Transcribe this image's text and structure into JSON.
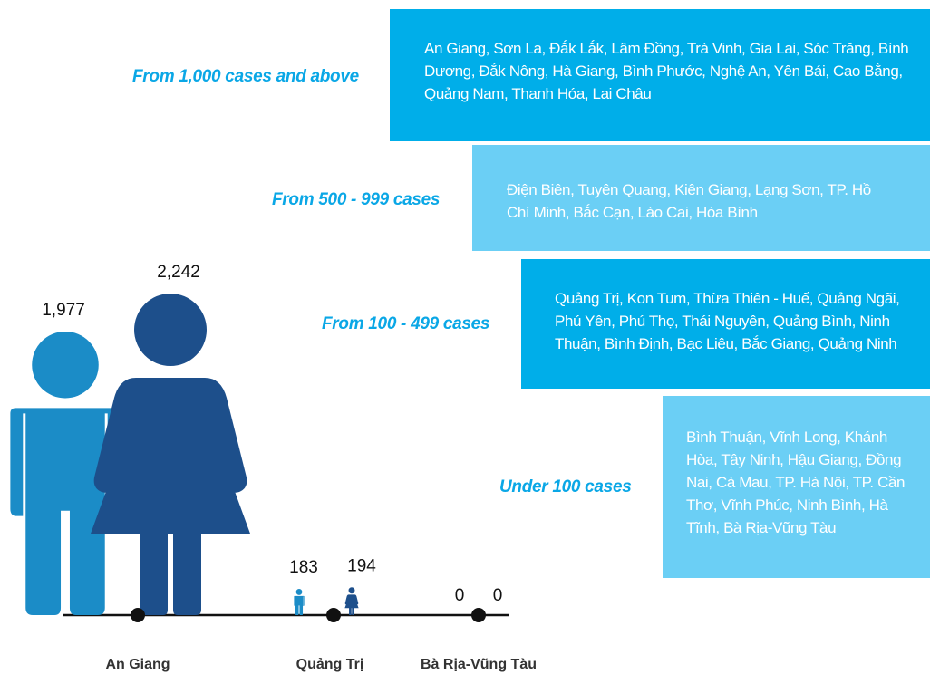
{
  "colors": {
    "box_dark": "#00aee9",
    "box_light": "#6bcff5",
    "label": "#0aa7e6",
    "male": "#1b8cc7",
    "female": "#1d4f8b",
    "axis": "#111111"
  },
  "tiers": [
    {
      "label": "From 1,000 cases and above",
      "provinces": "An Giang, Sơn La, Đắk Lắk, Lâm Đồng, Trà Vinh, Gia Lai, Sóc Trăng, Bình Dương, Đắk Nông, Hà Giang, Bình Phước, Nghệ An, Yên Bái, Cao Bằng, Quảng Nam, Thanh Hóa, Lai Châu"
    },
    {
      "label": "From 500 - 999 cases",
      "provinces": "Điện Biên, Tuyên Quang, Kiên Giang, Lạng Sơn, TP. Hồ Chí Minh, Bắc Cạn, Lào Cai, Hòa Bình"
    },
    {
      "label": "From 100 - 499 cases",
      "provinces": "Quảng Trị, Kon Tum, Thừa Thiên - Huế, Quảng Ngãi, Phú Yên, Phú Thọ, Thái Nguyên, Quảng Bình, Ninh Thuận, Bình Định, Bạc Liêu, Bắc Giang, Quảng Ninh"
    },
    {
      "label": "Under 100 cases",
      "provinces": "Bình Thuận, Vĩnh Long, Khánh Hòa, Tây Ninh, Hậu Giang, Đồng Nai, Cà Mau, TP. Hà Nội, TP. Cần Thơ, Vĩnh Phúc, Ninh Bình, Hà Tĩnh, Bà Rịa-Vũng Tàu"
    }
  ],
  "chart_data": {
    "type": "bar",
    "categories": [
      "An Giang",
      "Quảng Trị",
      "Bà Rịa-Vũng Tàu"
    ],
    "series": [
      {
        "values": [
          1977,
          183,
          0
        ]
      },
      {
        "values": [
          2242,
          194,
          0
        ]
      }
    ],
    "value_labels": [
      [
        "1,977",
        "183",
        "0"
      ],
      [
        "2,242",
        "194",
        "0"
      ]
    ],
    "ylim": [
      0,
      2242
    ]
  }
}
